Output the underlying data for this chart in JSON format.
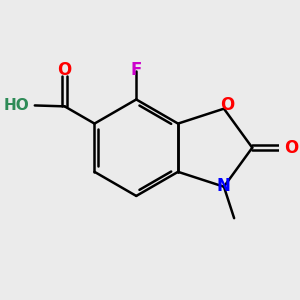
{
  "bg_color": "#ebebeb",
  "bond_color": "#000000",
  "figsize": [
    3.0,
    3.0
  ],
  "dpi": 100,
  "lw": 1.8,
  "atom_colors": {
    "O": "#ff0000",
    "N": "#0000ff",
    "F": "#cc00cc",
    "HO": "#2e8b57",
    "C": "#000000"
  }
}
